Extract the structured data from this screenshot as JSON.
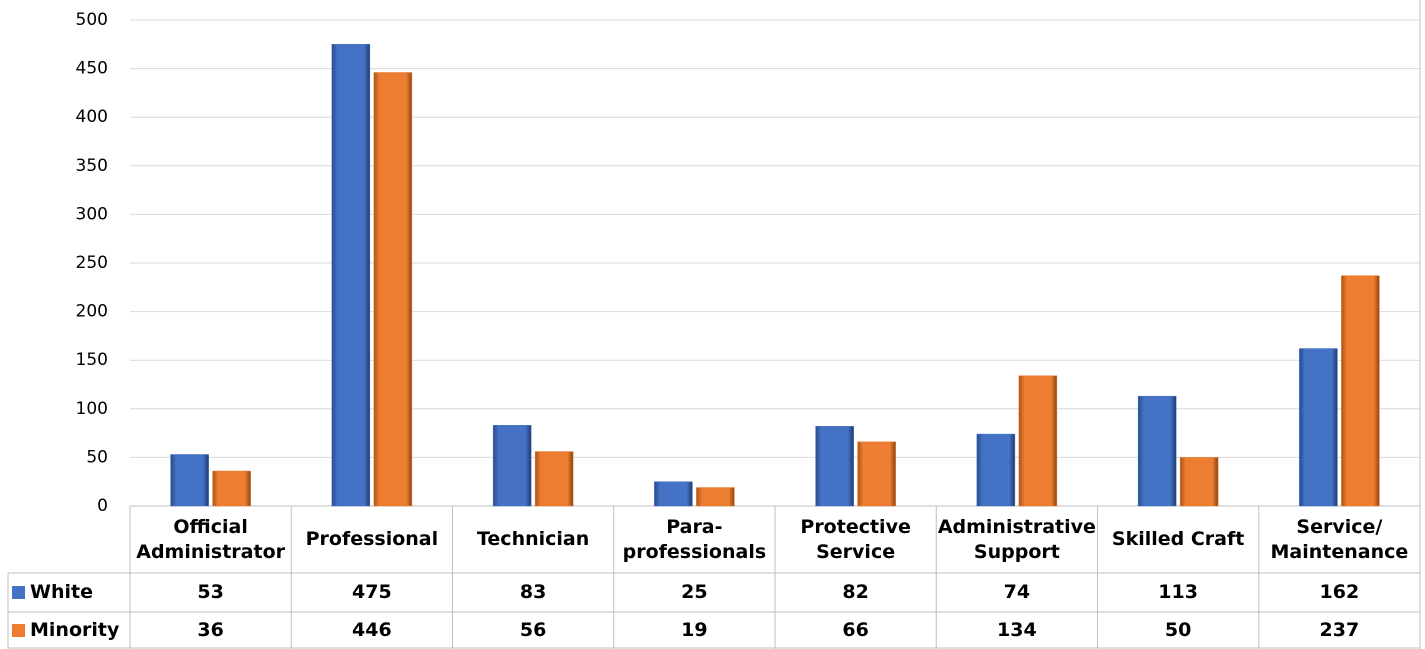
{
  "chart_data": {
    "type": "bar",
    "categories": [
      "Official\nAdministrator",
      "Professional",
      "Technician",
      "Para-\nprofessionals",
      "Protective\nService",
      "Administrative\nSupport",
      "Skilled Craft",
      "Service/\nMaintenance"
    ],
    "series": [
      {
        "name": "White",
        "color": "#4472c4",
        "values": [
          53,
          475,
          83,
          25,
          82,
          74,
          113,
          162
        ]
      },
      {
        "name": "Minority",
        "color": "#ed7d31",
        "values": [
          36,
          446,
          56,
          19,
          66,
          134,
          50,
          237
        ]
      }
    ],
    "ylim": [
      0,
      500
    ],
    "yticks": [
      0,
      50,
      100,
      150,
      200,
      250,
      300,
      350,
      400,
      450,
      500
    ],
    "grid": true
  }
}
